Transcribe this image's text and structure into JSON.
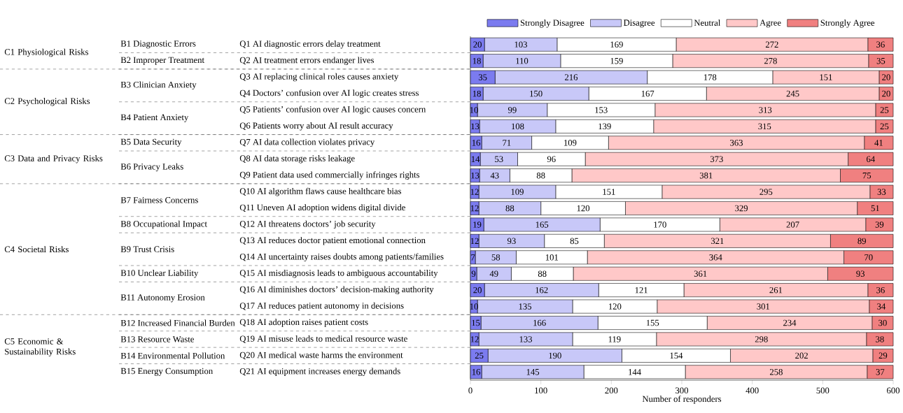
{
  "chart_data": {
    "type": "bar",
    "orientation": "horizontal",
    "stacked": true,
    "data_labels": true,
    "legend": "top",
    "xlabel": "Number of responders",
    "xlim": [
      0,
      600
    ],
    "xticks": [
      0,
      100,
      200,
      300,
      400,
      500,
      600
    ],
    "categories": [
      "Q1 AI diagnostic errors delay treatment",
      "Q2 AI treatment errors endanger lives",
      "Q3 AI replacing clinical roles causes anxiety",
      "Q4 Doctors’ confusion over AI logic creates stress",
      "Q5 Patients’ confusion over AI logic causes concern",
      "Q6 Patients worry about AI result accuracy",
      "Q7 AI data collection violates privacy",
      "Q8 AI data storage risks leakage",
      "Q9 Patient data used commercially infringes rights",
      "Q10 AI algorithm flaws cause healthcare bias",
      "Q11 Uneven AI adoption widens digital divide",
      "Q12 AI threatens doctors’ job security",
      "Q13 AI reduces doctor patient emotional connection",
      "Q14 AI uncertainty raises doubts among patients/families",
      "Q15 AI misdiagnosis leads to ambiguous accountability",
      "Q16 AI diminishes doctors’ decision-making authority",
      "Q17 AI reduces patient autonomy in decisions",
      "Q18 AI adoption raises patient costs",
      "Q19 AI misuse leads to medical resource waste",
      "Q20 AI medical waste harms the environment",
      "Q21 AI equipment increases energy demands"
    ],
    "series": [
      {
        "name": "Strongly Disagree",
        "color": "#7b7bef",
        "values": [
          20,
          18,
          35,
          18,
          10,
          13,
          16,
          14,
          13,
          12,
          12,
          19,
          12,
          7,
          9,
          20,
          10,
          15,
          12,
          25,
          16
        ]
      },
      {
        "name": "Disagree",
        "color": "#c8c8f8",
        "values": [
          103,
          110,
          216,
          150,
          99,
          108,
          71,
          53,
          43,
          109,
          88,
          165,
          93,
          58,
          49,
          162,
          135,
          166,
          133,
          190,
          145
        ]
      },
      {
        "name": "Neutral",
        "color": "#ffffff",
        "values": [
          169,
          159,
          178,
          167,
          153,
          139,
          109,
          96,
          88,
          151,
          120,
          170,
          85,
          101,
          88,
          121,
          120,
          155,
          119,
          154,
          144
        ]
      },
      {
        "name": "Agree",
        "color": "#ffc8c8",
        "values": [
          272,
          278,
          151,
          245,
          313,
          315,
          363,
          373,
          381,
          295,
          329,
          207,
          321,
          364,
          361,
          261,
          301,
          234,
          298,
          202,
          258
        ]
      },
      {
        "name": "Strongly Agree",
        "color": "#f08080",
        "values": [
          36,
          35,
          20,
          20,
          25,
          25,
          41,
          64,
          75,
          33,
          51,
          39,
          89,
          70,
          93,
          36,
          34,
          30,
          38,
          29,
          37
        ]
      }
    ],
    "annotations": [
      "B1 Diagnostic Errors",
      "B2 Improper Treatment",
      "B3 Clinician Anxiety",
      "B4 Patient Anxiety",
      "B5 Data Security",
      "B6 Privacy Leaks",
      "B7 Fairness Concerns",
      "B8 Occupational Impact",
      "B9 Trust Crisis",
      "B10 Unclear Liability",
      "B11 Autonomy Erosion",
      "B12 Increased Financial Burden",
      "B13 Resource Waste",
      "B14 Environmental Pollution",
      "B15 Energy Consumption",
      "C1 Physiological Risks",
      "C2 Psychological Risks",
      "C3 Data and Privacy Risks",
      "C4 Societal Risks",
      "C5 Economic & Sustainability Risks"
    ]
  }
}
